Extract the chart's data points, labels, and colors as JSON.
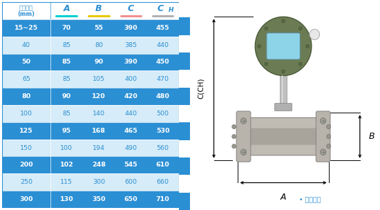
{
  "headers": [
    "仪表口径\n(mm)",
    "A",
    "B",
    "C",
    "CH"
  ],
  "col_underline_colors": [
    "none",
    "#00d0d0",
    "#e8c800",
    "#f09090",
    "#b0b0b0"
  ],
  "rows": [
    [
      "15~25",
      "70",
      "55",
      "390",
      "455"
    ],
    [
      "40",
      "85",
      "80",
      "385",
      "440"
    ],
    [
      "50",
      "85",
      "90",
      "390",
      "450"
    ],
    [
      "65",
      "85",
      "105",
      "400",
      "470"
    ],
    [
      "80",
      "90",
      "120",
      "420",
      "480"
    ],
    [
      "100",
      "85",
      "140",
      "440",
      "500"
    ],
    [
      "125",
      "95",
      "168",
      "465",
      "530"
    ],
    [
      "150",
      "100",
      "194",
      "490",
      "560"
    ],
    [
      "200",
      "102",
      "248",
      "545",
      "610"
    ],
    [
      "250",
      "115",
      "300",
      "600",
      "660"
    ],
    [
      "300",
      "130",
      "350",
      "650",
      "710"
    ]
  ],
  "dark_row_bg": "#2b8fd4",
  "light_row_bg": "#d6ecf8",
  "dark_row_indices": [
    0,
    2,
    4,
    6,
    8,
    10
  ],
  "light_row_indices": [
    1,
    3,
    5,
    7,
    9
  ],
  "header_bg": "#ffffff",
  "header_text_color": "#2b8fd4",
  "text_color_dark": "#ffffff",
  "text_color_light": "#2b8fd4",
  "bg_color": "#ffffff",
  "border_color": "#2b8fd4",
  "legend_text": "• 常规仪表"
}
